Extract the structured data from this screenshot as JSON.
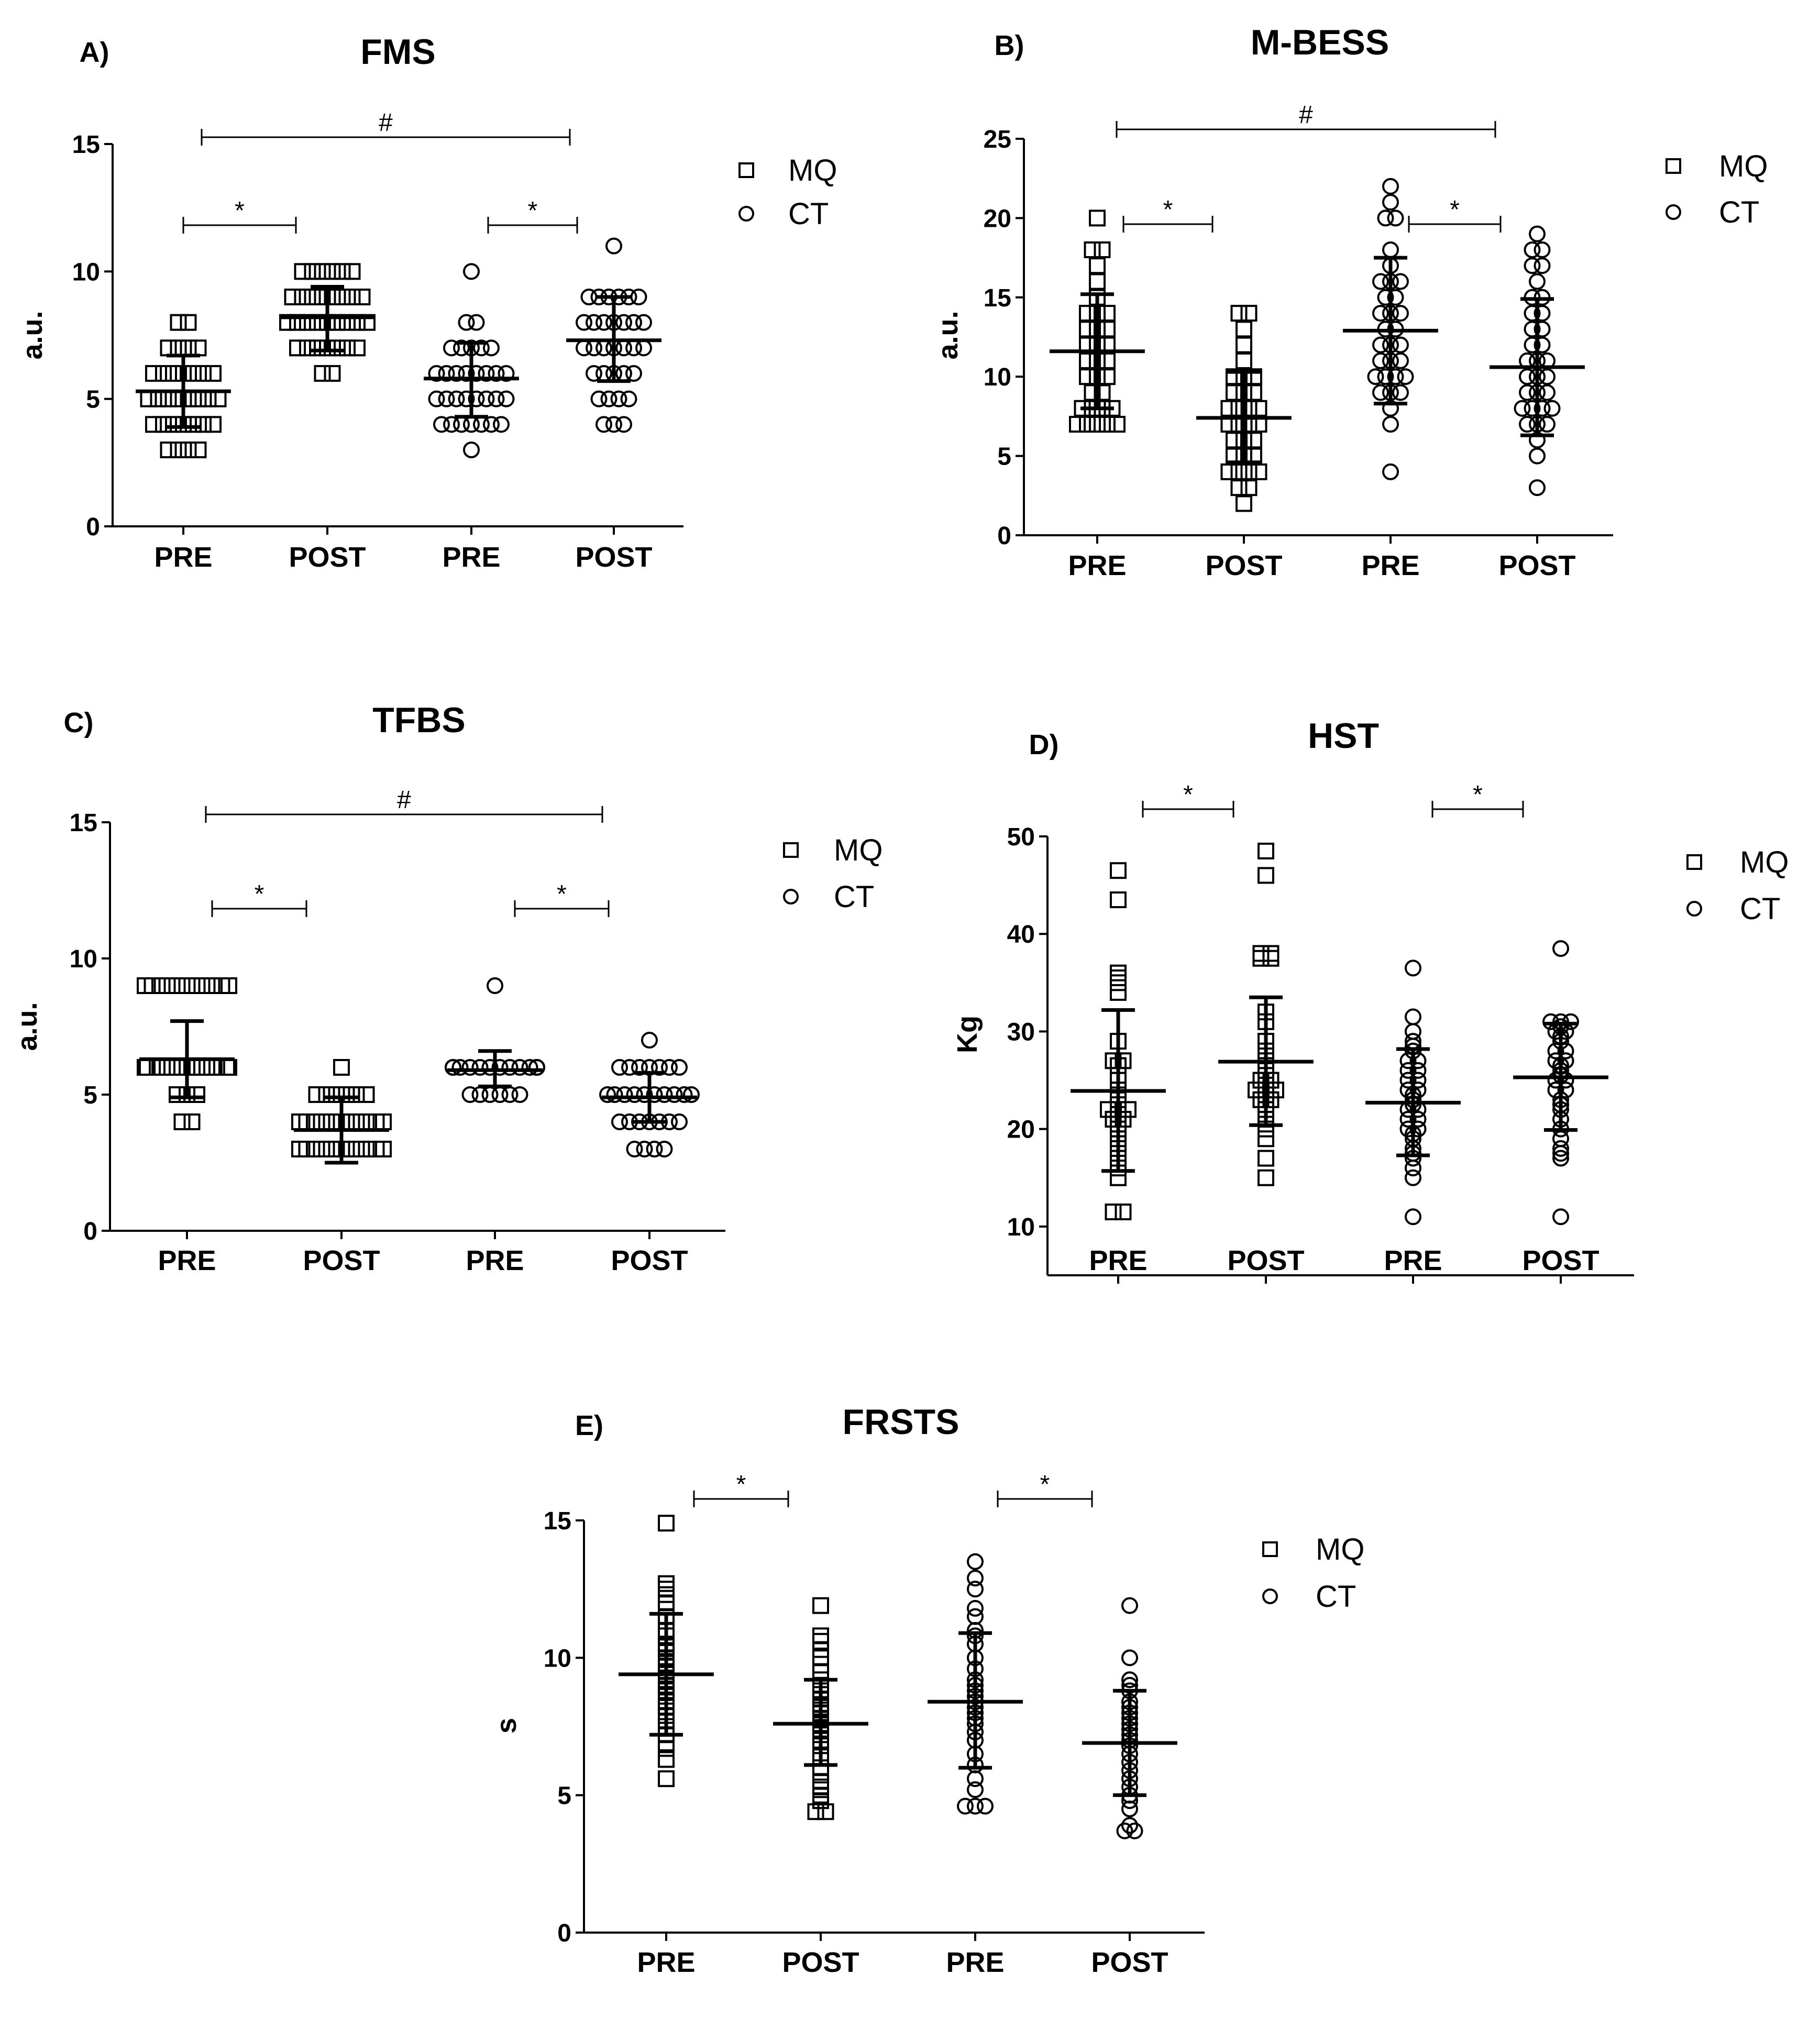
{
  "chart_data": [
    {
      "type": "scatter",
      "panel_label": "A)",
      "title": "FMS",
      "ylabel": "a.u.",
      "ylim": [
        0,
        15
      ],
      "yticks": [
        0,
        5,
        10,
        15
      ],
      "categories": [
        "PRE",
        "POST",
        "PRE",
        "POST"
      ],
      "legend": [
        {
          "marker": "square",
          "label": "MQ"
        },
        {
          "marker": "circle",
          "label": "CT"
        }
      ],
      "groups": [
        {
          "group": "MQ",
          "time": "PRE",
          "marker": "square",
          "mean": 5.3,
          "sd_low": 3.9,
          "sd_high": 6.7,
          "points": [
            3,
            3,
            3,
            3,
            4,
            4,
            4,
            4,
            4,
            4,
            4,
            5,
            5,
            5,
            5,
            5,
            5,
            5,
            5,
            6,
            6,
            6,
            6,
            6,
            6,
            6,
            7,
            7,
            7,
            7,
            8,
            8
          ]
        },
        {
          "group": "MQ",
          "time": "POST",
          "marker": "square",
          "mean": 8.2,
          "sd_low": 6.9,
          "sd_high": 9.4,
          "points": [
            6,
            6,
            7,
            7,
            7,
            7,
            7,
            7,
            7,
            8,
            8,
            8,
            8,
            8,
            8,
            8,
            8,
            8,
            9,
            9,
            9,
            9,
            9,
            9,
            9,
            9,
            10,
            10,
            10,
            10,
            10,
            10
          ]
        },
        {
          "group": "CT",
          "time": "PRE",
          "marker": "circle",
          "mean": 5.8,
          "sd_low": 4.3,
          "sd_high": 7.2,
          "points": [
            3,
            4,
            4,
            4,
            4,
            4,
            4,
            4,
            5,
            5,
            5,
            5,
            5,
            5,
            5,
            5,
            6,
            6,
            6,
            6,
            6,
            6,
            6,
            6,
            7,
            7,
            7,
            7,
            7,
            8,
            8,
            10
          ]
        },
        {
          "group": "CT",
          "time": "POST",
          "marker": "circle",
          "mean": 7.3,
          "sd_low": 5.7,
          "sd_high": 9.0,
          "points": [
            4,
            4,
            4,
            5,
            5,
            5,
            5,
            6,
            6,
            6,
            6,
            6,
            7,
            7,
            7,
            7,
            7,
            7,
            7,
            8,
            8,
            8,
            8,
            8,
            8,
            8,
            9,
            9,
            9,
            9,
            9,
            9,
            11
          ]
        }
      ],
      "brackets": [
        {
          "from": "MQ PRE",
          "to": "MQ POST",
          "symbol": "*"
        },
        {
          "from": "CT PRE",
          "to": "CT POST",
          "symbol": "*"
        },
        {
          "from": "MQ PRE",
          "to": "CT POST",
          "symbol": "#"
        }
      ]
    },
    {
      "type": "scatter",
      "panel_label": "B)",
      "title": "M-BESS",
      "ylabel": "a.u.",
      "ylim": [
        0,
        25
      ],
      "yticks": [
        0,
        5,
        10,
        15,
        20,
        25
      ],
      "categories": [
        "PRE",
        "POST",
        "PRE",
        "POST"
      ],
      "legend": [
        {
          "marker": "square",
          "label": "MQ"
        },
        {
          "marker": "circle",
          "label": "CT"
        }
      ],
      "groups": [
        {
          "group": "MQ",
          "time": "PRE",
          "marker": "square",
          "mean": 11.6,
          "sd_low": 8.0,
          "sd_high": 15.2,
          "points": [
            7,
            7,
            7,
            7,
            7,
            8,
            8,
            8,
            8,
            9,
            9,
            10,
            10,
            10,
            11,
            11,
            11,
            12,
            12,
            12,
            13,
            13,
            13,
            14,
            14,
            14,
            15,
            16,
            17,
            18,
            18,
            20
          ]
        },
        {
          "group": "MQ",
          "time": "POST",
          "marker": "square",
          "mean": 7.4,
          "sd_low": 4.6,
          "sd_high": 10.3,
          "points": [
            2,
            3,
            3,
            4,
            4,
            4,
            4,
            5,
            5,
            5,
            6,
            6,
            6,
            7,
            7,
            7,
            7,
            8,
            8,
            8,
            8,
            9,
            9,
            9,
            10,
            10,
            10,
            11,
            12,
            13,
            14,
            14
          ]
        },
        {
          "group": "CT",
          "time": "PRE",
          "marker": "circle",
          "mean": 12.9,
          "sd_low": 8.3,
          "sd_high": 17.5,
          "points": [
            4,
            7,
            8,
            9,
            9,
            9,
            10,
            10,
            10,
            10,
            11,
            11,
            11,
            12,
            12,
            12,
            13,
            13,
            14,
            14,
            14,
            15,
            15,
            16,
            16,
            16,
            17,
            18,
            20,
            20,
            21,
            22
          ]
        },
        {
          "group": "CT",
          "time": "POST",
          "marker": "circle",
          "mean": 10.6,
          "sd_low": 6.3,
          "sd_high": 14.9,
          "points": [
            3,
            5,
            6,
            7,
            7,
            7,
            8,
            8,
            8,
            8,
            9,
            9,
            9,
            10,
            10,
            10,
            11,
            11,
            11,
            12,
            12,
            13,
            13,
            14,
            14,
            15,
            15,
            16,
            17,
            17,
            18,
            18,
            19
          ]
        }
      ],
      "brackets": [
        {
          "from": "MQ PRE",
          "to": "MQ POST",
          "symbol": "*"
        },
        {
          "from": "CT PRE",
          "to": "CT POST",
          "symbol": "*"
        },
        {
          "from": "MQ PRE",
          "to": "CT POST",
          "symbol": "#"
        }
      ]
    },
    {
      "type": "scatter",
      "panel_label": "C)",
      "title": "TFBS",
      "ylabel": "a.u.",
      "ylim": [
        0,
        15
      ],
      "yticks": [
        0,
        5,
        10,
        15
      ],
      "categories": [
        "PRE",
        "POST",
        "PRE",
        "POST"
      ],
      "legend": [
        {
          "marker": "square",
          "label": "MQ"
        },
        {
          "marker": "circle",
          "label": "CT"
        }
      ],
      "groups": [
        {
          "group": "MQ",
          "time": "PRE",
          "marker": "square",
          "mean": 6.3,
          "sd_low": 4.9,
          "sd_high": 7.7,
          "points": [
            4,
            4,
            5,
            5,
            5,
            6,
            6,
            6,
            6,
            6,
            6,
            6,
            6,
            6,
            6,
            6,
            6,
            6,
            6,
            6,
            6,
            6,
            9,
            9,
            9,
            9,
            9,
            9,
            9,
            9,
            9,
            9
          ]
        },
        {
          "group": "MQ",
          "time": "POST",
          "marker": "square",
          "mean": 3.7,
          "sd_low": 2.5,
          "sd_high": 4.9,
          "points": [
            3,
            3,
            3,
            3,
            3,
            3,
            3,
            3,
            3,
            3,
            3,
            3,
            4,
            4,
            4,
            4,
            4,
            4,
            4,
            4,
            4,
            4,
            4,
            4,
            5,
            5,
            5,
            5,
            5,
            5,
            6
          ]
        },
        {
          "group": "CT",
          "time": "PRE",
          "marker": "circle",
          "mean": 5.9,
          "sd_low": 5.3,
          "sd_high": 6.6,
          "points": [
            5,
            5,
            5,
            5,
            5,
            5,
            6,
            6,
            6,
            6,
            6,
            6,
            6,
            6,
            6,
            6,
            6,
            6,
            6,
            6,
            6,
            6,
            9
          ]
        },
        {
          "group": "CT",
          "time": "POST",
          "marker": "circle",
          "mean": 4.9,
          "sd_low": 4.0,
          "sd_high": 5.8,
          "points": [
            3,
            3,
            3,
            3,
            4,
            4,
            4,
            4,
            4,
            4,
            4,
            5,
            5,
            5,
            5,
            5,
            5,
            5,
            5,
            5,
            5,
            6,
            6,
            6,
            6,
            6,
            6,
            6,
            7
          ]
        }
      ],
      "brackets": [
        {
          "from": "MQ PRE",
          "to": "MQ POST",
          "symbol": "*"
        },
        {
          "from": "CT PRE",
          "to": "CT POST",
          "symbol": "*"
        },
        {
          "from": "MQ PRE",
          "to": "CT POST",
          "symbol": "#"
        }
      ]
    },
    {
      "type": "scatter",
      "panel_label": "D)",
      "title": "HST",
      "ylabel": "Kg",
      "ylim": [
        5,
        50
      ],
      "yticks": [
        10,
        20,
        30,
        40,
        50
      ],
      "categories": [
        "PRE",
        "POST",
        "PRE",
        "POST"
      ],
      "legend": [
        {
          "marker": "square",
          "label": "MQ"
        },
        {
          "marker": "circle",
          "label": "CT"
        }
      ],
      "groups": [
        {
          "group": "MQ",
          "time": "PRE",
          "marker": "square",
          "mean": 23.9,
          "sd_low": 15.7,
          "sd_high": 32.2,
          "points": [
            11.5,
            11.5,
            15,
            16,
            17,
            18,
            18.5,
            19,
            19.5,
            20,
            20.5,
            21,
            21,
            22,
            22,
            22,
            23,
            23.5,
            24,
            25,
            25.5,
            26.5,
            27,
            27,
            29,
            34,
            35,
            35.5,
            36,
            43.5,
            46.5
          ]
        },
        {
          "group": "MQ",
          "time": "POST",
          "marker": "square",
          "mean": 26.9,
          "sd_low": 20.4,
          "sd_high": 33.5,
          "points": [
            15,
            17,
            19,
            20,
            21,
            22,
            22.5,
            23,
            23,
            23.5,
            24,
            24,
            24,
            24.5,
            25,
            25,
            26,
            26.5,
            27,
            28,
            29,
            31,
            32,
            37.5,
            37.5,
            38,
            38,
            46,
            48.5
          ]
        },
        {
          "group": "CT",
          "time": "PRE",
          "marker": "circle",
          "mean": 22.7,
          "sd_low": 17.3,
          "sd_high": 28.2,
          "points": [
            11,
            15,
            16,
            17,
            17.5,
            18,
            19,
            19.5,
            20,
            20,
            21,
            21,
            22,
            22,
            22.5,
            23,
            23.5,
            24,
            24,
            25,
            25,
            26,
            26,
            27,
            27,
            28,
            28.5,
            29,
            30,
            31.5,
            36.5
          ]
        },
        {
          "group": "CT",
          "time": "POST",
          "marker": "circle",
          "mean": 25.3,
          "sd_low": 19.9,
          "sd_high": 30.8,
          "points": [
            11,
            17,
            17.5,
            18,
            19,
            20,
            21,
            22,
            22.5,
            23,
            24,
            24,
            25,
            25,
            25.5,
            26,
            26.5,
            27,
            27,
            28,
            28,
            29,
            29.5,
            30,
            30,
            30.5,
            31,
            31,
            31,
            38.5
          ]
        }
      ],
      "brackets": [
        {
          "from": "MQ PRE",
          "to": "MQ POST",
          "symbol": "*"
        },
        {
          "from": "CT PRE",
          "to": "CT POST",
          "symbol": "*"
        }
      ]
    },
    {
      "type": "scatter",
      "panel_label": "E)",
      "title": "FRSTS",
      "ylabel": "s",
      "ylim": [
        0,
        15
      ],
      "yticks": [
        0,
        5,
        10,
        15
      ],
      "categories": [
        "PRE",
        "POST",
        "PRE",
        "POST"
      ],
      "legend": [
        {
          "marker": "square",
          "label": "MQ"
        },
        {
          "marker": "circle",
          "label": "CT"
        }
      ],
      "groups": [
        {
          "group": "MQ",
          "time": "PRE",
          "marker": "square",
          "mean": 9.4,
          "sd_low": 7.2,
          "sd_high": 11.6,
          "points": [
            5.6,
            6.3,
            6.7,
            6.9,
            7.2,
            7.5,
            7.7,
            7.9,
            8.2,
            8.4,
            8.6,
            8.8,
            9,
            9.2,
            9.4,
            9.5,
            9.7,
            9.8,
            10,
            10.2,
            10.4,
            10.5,
            10.8,
            11,
            11.5,
            12,
            12.3,
            12.5,
            12.7,
            14.9
          ]
        },
        {
          "group": "MQ",
          "time": "POST",
          "marker": "square",
          "mean": 7.6,
          "sd_low": 6.1,
          "sd_high": 9.2,
          "points": [
            4.4,
            4.4,
            4.8,
            5,
            5.2,
            5.3,
            5.5,
            6,
            6.4,
            6.8,
            7,
            7.2,
            7.4,
            7.6,
            7.8,
            8,
            8.1,
            8.2,
            8.3,
            8.5,
            8.8,
            9,
            9.2,
            9.5,
            10,
            10.3,
            10.6,
            10.8,
            11.9
          ]
        },
        {
          "group": "CT",
          "time": "PRE",
          "marker": "circle",
          "mean": 8.4,
          "sd_low": 6.0,
          "sd_high": 10.9,
          "points": [
            4.6,
            4.6,
            4.6,
            5.2,
            5.6,
            6.1,
            6.5,
            7,
            7.3,
            7.6,
            7.8,
            8,
            8.2,
            8.4,
            8.6,
            8.8,
            9,
            9.2,
            9.6,
            10,
            10.5,
            10.8,
            11,
            11.5,
            11.8,
            12.5,
            12.9,
            13.5
          ]
        },
        {
          "group": "CT",
          "time": "POST",
          "marker": "circle",
          "mean": 6.9,
          "sd_low": 5.0,
          "sd_high": 8.8,
          "points": [
            3.7,
            3.7,
            3.9,
            4.5,
            4.8,
            5,
            5.3,
            5.6,
            5.9,
            6.2,
            6.5,
            6.8,
            7,
            7.2,
            7.4,
            7.6,
            7.8,
            8,
            8.2,
            8.4,
            8.8,
            9,
            9.2,
            10,
            11.9
          ]
        }
      ],
      "brackets": [
        {
          "from": "MQ PRE",
          "to": "MQ POST",
          "symbol": "*"
        },
        {
          "from": "CT PRE",
          "to": "CT POST",
          "symbol": "*"
        }
      ]
    }
  ]
}
